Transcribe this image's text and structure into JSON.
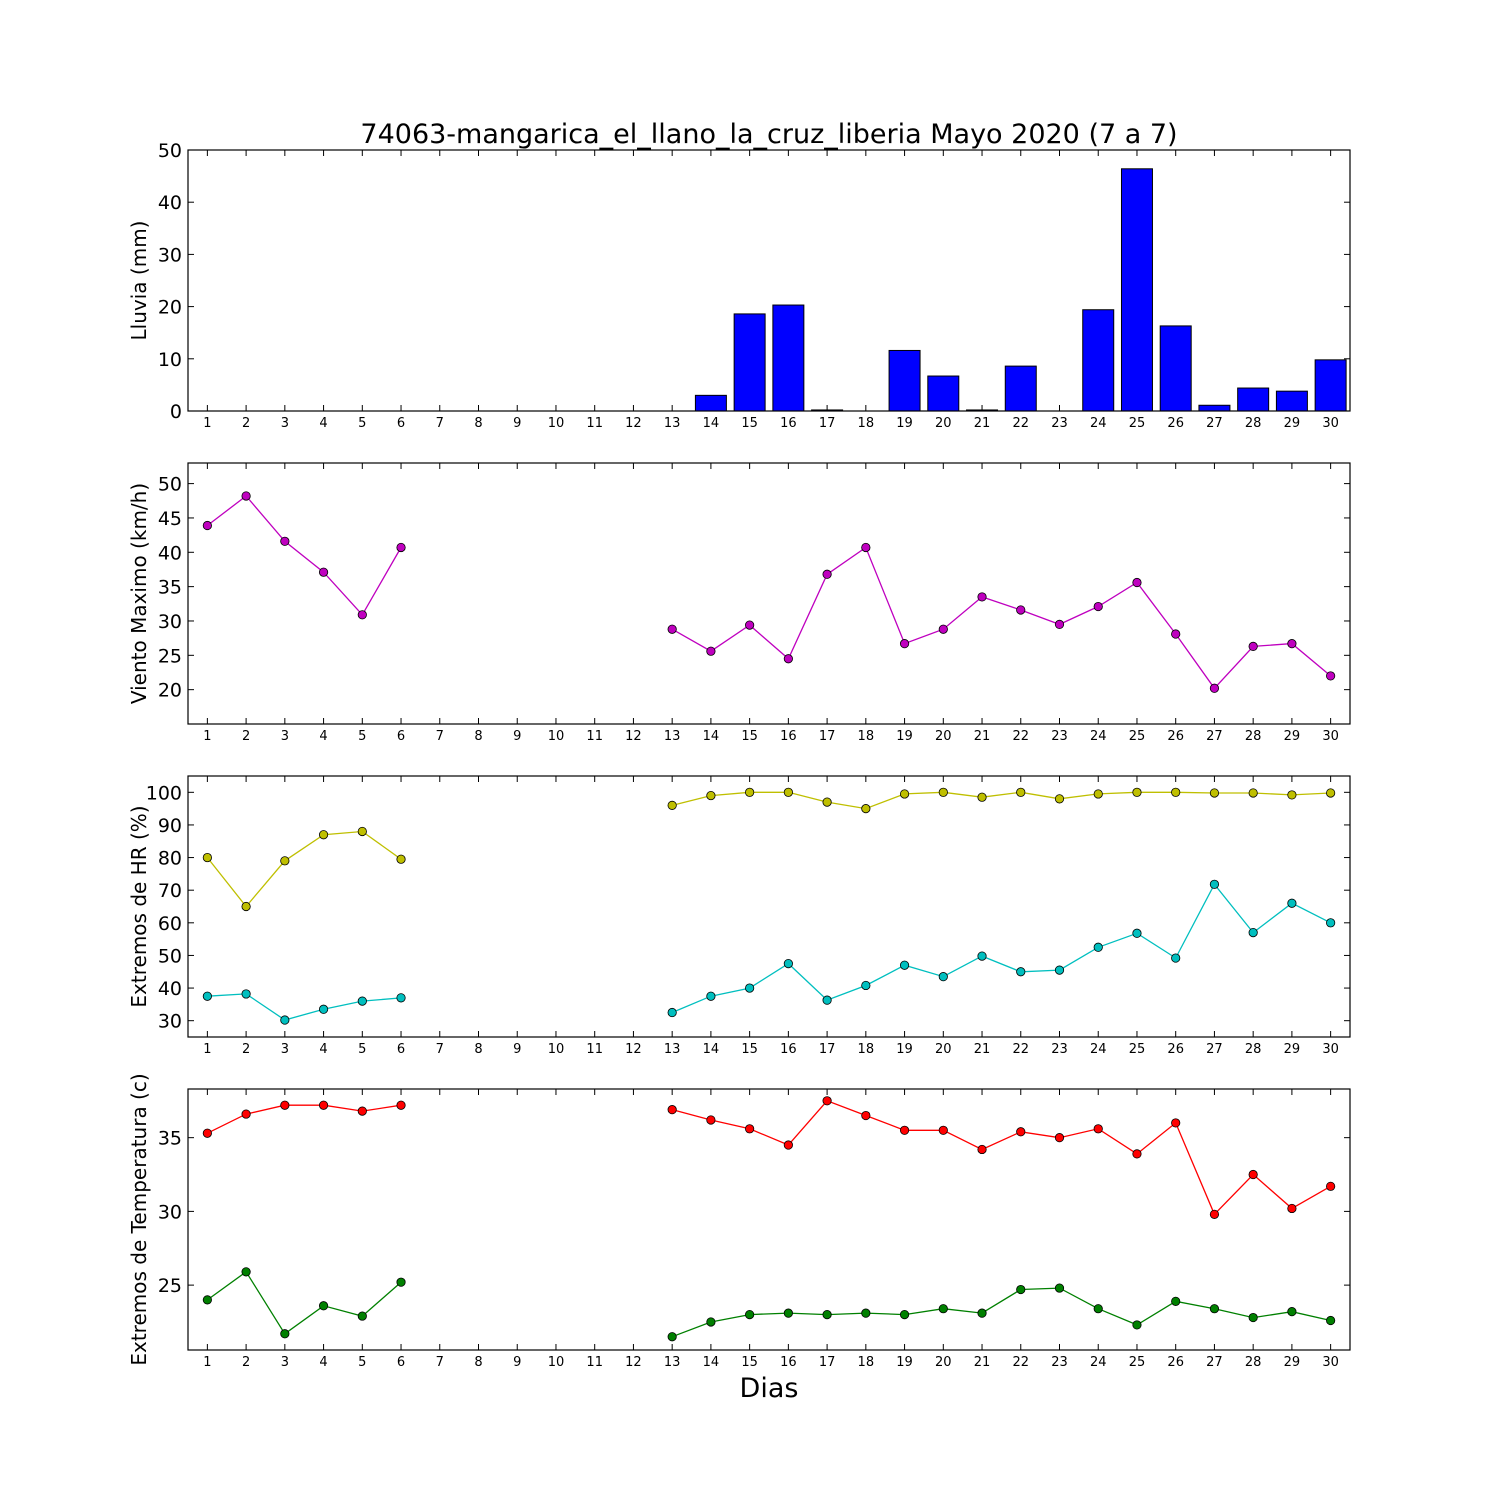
{
  "figure": {
    "title": "74063-mangarica_el_llano_la_cruz_liberia Mayo 2020  (7 a 7)",
    "xlabel": "Dias"
  },
  "colors": {
    "rain": "#0000ff",
    "wind": "#bf00bf",
    "hr_max": "#bfbf00",
    "hr_min": "#00bfbf",
    "temp_max": "#ff0000",
    "temp_min": "#008000"
  },
  "chart_data": [
    {
      "type": "bar",
      "ylabel": "Lluvia (mm)",
      "x": [
        1,
        2,
        3,
        4,
        5,
        6,
        7,
        8,
        9,
        10,
        11,
        12,
        13,
        14,
        15,
        16,
        17,
        18,
        19,
        20,
        21,
        22,
        23,
        24,
        25,
        26,
        27,
        28,
        29,
        30
      ],
      "xlim": [
        0.5,
        30.5
      ],
      "ylim": [
        0,
        50
      ],
      "yticks": [
        0,
        10,
        20,
        30,
        40,
        50
      ],
      "series": [
        {
          "color_key": "rain",
          "values": [
            0,
            0,
            0,
            0,
            0,
            0,
            0,
            0,
            0,
            0,
            0,
            0,
            0,
            3.0,
            18.6,
            20.3,
            0.2,
            0,
            11.6,
            6.7,
            0.2,
            8.6,
            0,
            19.4,
            46.4,
            16.3,
            1.1,
            4.4,
            3.8,
            9.8
          ]
        }
      ]
    },
    {
      "type": "line",
      "ylabel": "Viento Maximo (km/h)",
      "x": [
        1,
        2,
        3,
        4,
        5,
        6,
        7,
        8,
        9,
        10,
        11,
        12,
        13,
        14,
        15,
        16,
        17,
        18,
        19,
        20,
        21,
        22,
        23,
        24,
        25,
        26,
        27,
        28,
        29,
        30
      ],
      "xlim": [
        0.5,
        30.5
      ],
      "ylim": [
        15,
        53
      ],
      "yticks": [
        20,
        25,
        30,
        35,
        40,
        45,
        50
      ],
      "series": [
        {
          "color_key": "wind",
          "values": [
            43.9,
            48.2,
            41.6,
            37.1,
            30.9,
            40.7,
            null,
            null,
            null,
            null,
            null,
            null,
            28.8,
            25.6,
            29.4,
            24.5,
            36.8,
            40.7,
            26.7,
            28.8,
            33.5,
            31.6,
            29.5,
            32.1,
            35.6,
            28.1,
            20.2,
            26.3,
            26.7,
            22.0
          ]
        }
      ]
    },
    {
      "type": "line",
      "ylabel": "Extremos de HR (%)",
      "x": [
        1,
        2,
        3,
        4,
        5,
        6,
        7,
        8,
        9,
        10,
        11,
        12,
        13,
        14,
        15,
        16,
        17,
        18,
        19,
        20,
        21,
        22,
        23,
        24,
        25,
        26,
        27,
        28,
        29,
        30
      ],
      "xlim": [
        0.5,
        30.5
      ],
      "ylim": [
        25,
        105
      ],
      "yticks": [
        30,
        40,
        50,
        60,
        70,
        80,
        90,
        100
      ],
      "series": [
        {
          "color_key": "hr_max",
          "values": [
            80,
            65,
            79,
            87,
            88,
            79.5,
            null,
            null,
            null,
            null,
            null,
            null,
            96,
            99,
            100,
            100,
            97,
            95,
            99.5,
            100,
            98.5,
            100,
            98,
            99.5,
            100,
            100,
            99.8,
            99.8,
            99.2,
            99.8
          ]
        },
        {
          "color_key": "hr_min",
          "values": [
            37.5,
            38.2,
            30.2,
            33.5,
            36,
            37,
            null,
            null,
            null,
            null,
            null,
            null,
            32.5,
            37.5,
            40,
            47.5,
            36.3,
            40.8,
            47,
            43.5,
            49.8,
            45,
            45.5,
            52.5,
            56.8,
            49.2,
            71.8,
            57,
            66,
            60
          ]
        }
      ]
    },
    {
      "type": "line",
      "ylabel": "Extremos de Temperatura (c)",
      "x": [
        1,
        2,
        3,
        4,
        5,
        6,
        7,
        8,
        9,
        10,
        11,
        12,
        13,
        14,
        15,
        16,
        17,
        18,
        19,
        20,
        21,
        22,
        23,
        24,
        25,
        26,
        27,
        28,
        29,
        30
      ],
      "xlim": [
        0.5,
        30.5
      ],
      "ylim": [
        20.6,
        38.3
      ],
      "yticks": [
        25,
        30,
        35
      ],
      "series": [
        {
          "color_key": "temp_max",
          "values": [
            35.3,
            36.6,
            37.2,
            37.2,
            36.8,
            37.2,
            null,
            null,
            null,
            null,
            null,
            null,
            36.9,
            36.2,
            35.6,
            34.5,
            37.5,
            36.5,
            35.5,
            35.5,
            34.2,
            35.4,
            35.0,
            35.6,
            33.9,
            36.0,
            29.8,
            32.5,
            30.2,
            31.7
          ]
        },
        {
          "color_key": "temp_min",
          "values": [
            24.0,
            25.9,
            21.7,
            23.6,
            22.9,
            25.2,
            null,
            null,
            null,
            null,
            null,
            null,
            21.5,
            22.5,
            23.0,
            23.1,
            23.0,
            23.1,
            23.0,
            23.4,
            23.1,
            24.7,
            24.8,
            23.4,
            22.3,
            23.9,
            23.4,
            22.8,
            23.2,
            22.6
          ]
        }
      ]
    }
  ]
}
